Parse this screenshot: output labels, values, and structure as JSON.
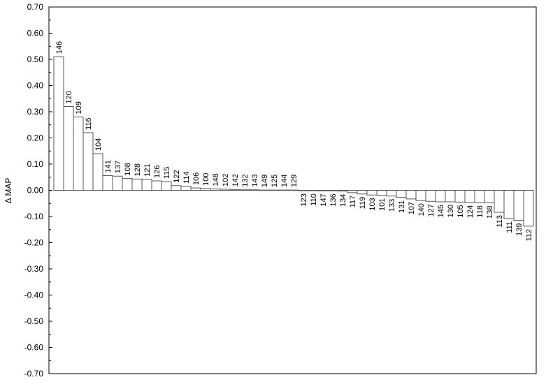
{
  "chart_data": {
    "type": "bar",
    "ylabel": "Δ MAP",
    "ylim": [
      -0.7,
      0.7
    ],
    "yticks": [
      "0.70",
      "0.60",
      "0.50",
      "0.40",
      "0.30",
      "0.20",
      "0.10",
      "0.00",
      "-0.10",
      "-0.20",
      "-0.30",
      "-0.40",
      "-0.50",
      "-0.60",
      "-0.70"
    ],
    "grid": false,
    "legend": "none",
    "bar_fill": "#ffffff",
    "bar_stroke": "#555555",
    "categories": [
      "146",
      "120",
      "109",
      "116",
      "104",
      "141",
      "137",
      "108",
      "128",
      "121",
      "126",
      "115",
      "122",
      "114",
      "106",
      "100",
      "148",
      "102",
      "142",
      "132",
      "143",
      "149",
      "125",
      "144",
      "129",
      "123",
      "110",
      "147",
      "136",
      "134",
      "117",
      "119",
      "103",
      "101",
      "133",
      "131",
      "107",
      "140",
      "127",
      "145",
      "130",
      "105",
      "124",
      "118",
      "138",
      "113",
      "111",
      "139",
      "112"
    ],
    "values": [
      0.51,
      0.32,
      0.28,
      0.22,
      0.14,
      0.056,
      0.054,
      0.045,
      0.043,
      0.042,
      0.036,
      0.033,
      0.018,
      0.015,
      0.009,
      0.007,
      0.005,
      0.004,
      0.003,
      0.002,
      0.002,
      0.001,
      0.001,
      0.001,
      0.001,
      -0.001,
      -0.001,
      -0.002,
      -0.002,
      -0.003,
      -0.009,
      -0.014,
      -0.018,
      -0.019,
      -0.022,
      -0.027,
      -0.033,
      -0.039,
      -0.042,
      -0.044,
      -0.044,
      -0.045,
      -0.046,
      -0.047,
      -0.048,
      -0.084,
      -0.108,
      -0.115,
      -0.137
    ]
  }
}
